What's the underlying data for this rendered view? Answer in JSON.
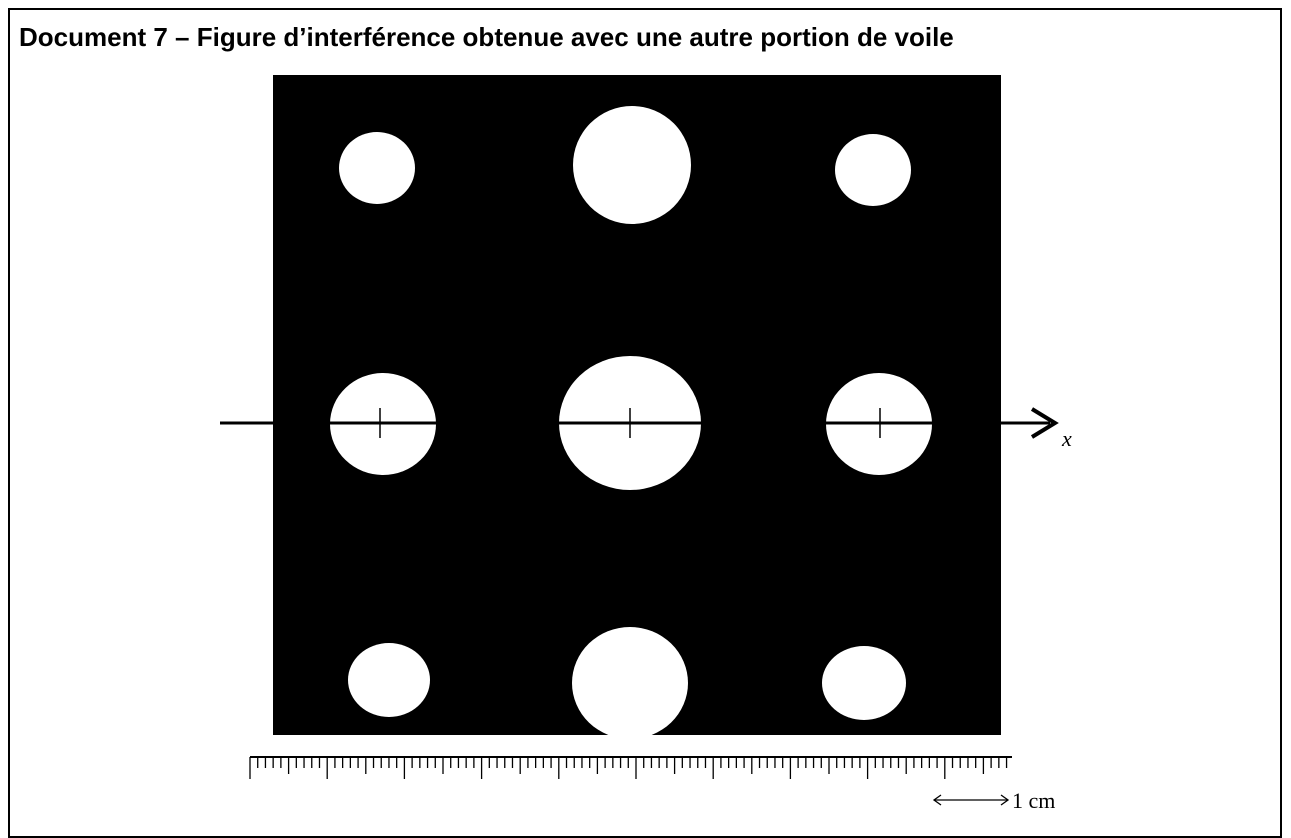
{
  "header": {
    "title": "Document 7 – Figure d’interférence obtenue avec une autre portion de voile"
  },
  "figure": {
    "axis_label": "x",
    "scale_label": "1 cm"
  }
}
